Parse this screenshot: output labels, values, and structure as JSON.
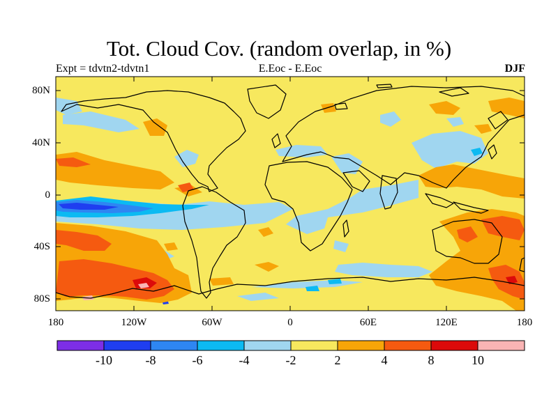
{
  "title": "Tot. Cloud Cov. (random overlap, in %)",
  "subtitle_left": "Expt = tdvtn2-tdvtn1",
  "subtitle_center": "E.Eoc - E.Eoc",
  "subtitle_right": "DJF",
  "lat_labels": [
    "80N",
    "40N",
    "0",
    "40S",
    "80S"
  ],
  "lon_labels": [
    "180",
    "120W",
    "60W",
    "0",
    "60E",
    "120E",
    "180"
  ],
  "colorbar": {
    "colors": [
      "#7d2ee6",
      "#1f3ef0",
      "#2e86f2",
      "#0cbaf2",
      "#a0d6f0",
      "#f7e85e",
      "#f7a508",
      "#f55a10",
      "#dc0a0a",
      "#fab4b4"
    ],
    "labels": [
      "-10",
      "-8",
      "-6",
      "-4",
      "-2",
      "2",
      "4",
      "8",
      "10"
    ]
  },
  "palette": {
    "background_positive_small": "#f7e85e",
    "coast": "#000000"
  }
}
